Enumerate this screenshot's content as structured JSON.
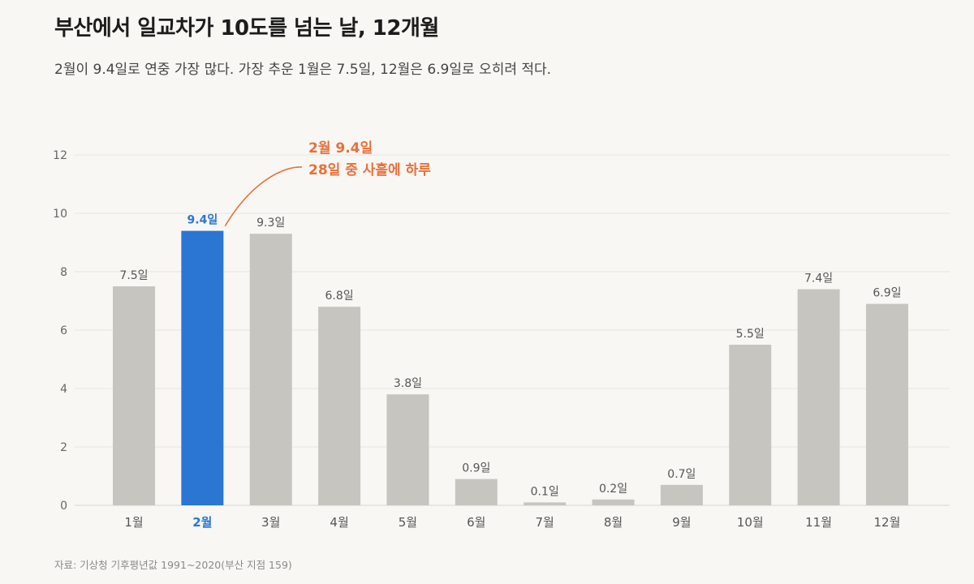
{
  "header": {
    "title": "부산에서 일교차가 10도를 넘는 날, 12개월",
    "subtitle": "2월이 9.4일로 연중 가장 많다. 가장 추운 1월은 7.5일, 12월은 6.9일로 오히려 적다."
  },
  "source": "자료: 기상청 기후평년값 1991~2020(부산 지점 159)",
  "colors": {
    "bar": "#c6c5c0",
    "highlight": "#2a76d2",
    "annotation": "#e8703a",
    "grid": "#e6e4df"
  },
  "chart_data": {
    "type": "bar",
    "categories": [
      "1월",
      "2월",
      "3월",
      "4월",
      "5월",
      "6월",
      "7월",
      "8월",
      "9월",
      "10월",
      "11월",
      "12월"
    ],
    "values": [
      7.5,
      9.4,
      9.3,
      6.8,
      3.8,
      0.9,
      0.1,
      0.2,
      0.7,
      5.5,
      7.4,
      6.9
    ],
    "value_labels": [
      "7.5일",
      "9.4일",
      "9.3일",
      "6.8일",
      "3.8일",
      "0.9일",
      "0.1일",
      "0.2일",
      "0.7일",
      "5.5일",
      "7.4일",
      "6.9일"
    ],
    "highlight_index": 1,
    "ylim": [
      0,
      12
    ],
    "yticks": [
      0,
      2,
      4,
      6,
      8,
      10,
      12
    ],
    "grid": true,
    "annotation": {
      "index": 1,
      "line1": "2월 9.4일",
      "line2": "28일 중 사흘에 하루"
    }
  }
}
